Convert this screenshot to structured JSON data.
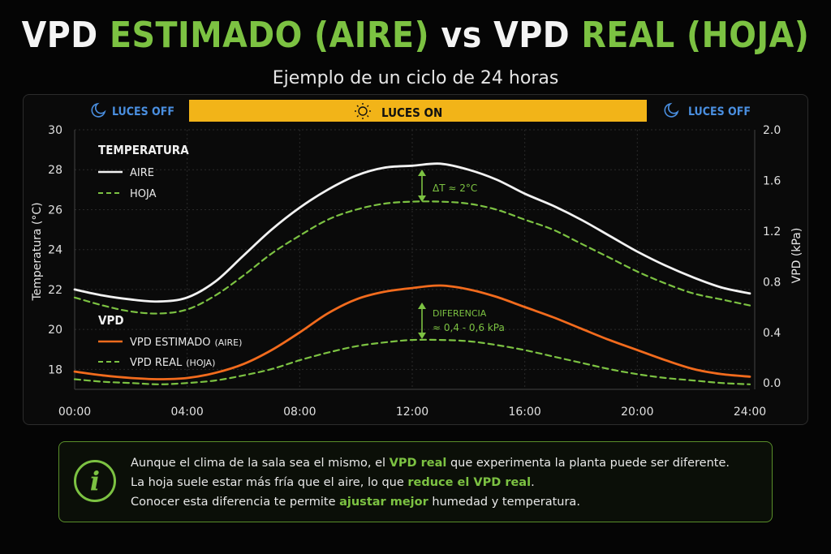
{
  "header": {
    "title_parts": [
      "VPD ",
      "ESTIMADO (AIRE)",
      " vs ",
      "VPD ",
      "REAL (HOJA)"
    ],
    "subtitle": "Ejemplo de un ciclo de 24 horas"
  },
  "light_bar": {
    "off_left": "LUCES OFF",
    "on": "LUCES ON",
    "off_right": "LUCES OFF"
  },
  "chart_data": {
    "type": "line",
    "x_ticks": [
      "00:00",
      "04:00",
      "08:00",
      "12:00",
      "16:00",
      "20:00",
      "24:00"
    ],
    "xlim_hours": [
      0,
      24
    ],
    "ylabel_left": "Temperatura (°C)",
    "ylim_left": [
      17,
      30
    ],
    "yticks_left": [
      "18",
      "20",
      "22",
      "24",
      "26",
      "28",
      "30"
    ],
    "ylabel_right": "VPD (kPa)",
    "ylim_right": [
      -0.05,
      2.0
    ],
    "yticks_right": [
      "0.0",
      "0.4",
      "0.8",
      "1.2",
      "1.6",
      "2.0"
    ],
    "grid": true,
    "legend_temp": {
      "title": "TEMPERATURA",
      "aire": "AIRE",
      "hoja": "HOJA"
    },
    "legend_vpd": {
      "title": "VPD",
      "estimado": "VPD ESTIMADO",
      "estimado_small": "(AIRE)",
      "real": "VPD REAL",
      "real_small": "(HOJA)"
    },
    "series": [
      {
        "name": "AIRE",
        "axis": "left",
        "color": "#f2f2f2",
        "style": "solid",
        "x": [
          0,
          1,
          2,
          3,
          4,
          5,
          6,
          7,
          8,
          9,
          10,
          11,
          12,
          13,
          14,
          15,
          16,
          17,
          18,
          19,
          20,
          21,
          22,
          23,
          24
        ],
        "y": [
          22.0,
          21.7,
          21.5,
          21.4,
          21.6,
          22.4,
          23.7,
          25.0,
          26.1,
          27.0,
          27.7,
          28.1,
          28.2,
          28.3,
          28.0,
          27.5,
          26.8,
          26.2,
          25.5,
          24.7,
          23.9,
          23.2,
          22.6,
          22.1,
          21.8
        ]
      },
      {
        "name": "HOJA",
        "axis": "left",
        "color": "#7cc242",
        "style": "dashed",
        "x": [
          0,
          1,
          2,
          3,
          4,
          5,
          6,
          7,
          8,
          9,
          10,
          11,
          12,
          13,
          14,
          15,
          16,
          17,
          18,
          19,
          20,
          21,
          22,
          23,
          24
        ],
        "y": [
          21.6,
          21.2,
          20.9,
          20.8,
          21.0,
          21.7,
          22.7,
          23.8,
          24.7,
          25.5,
          26.0,
          26.3,
          26.4,
          26.4,
          26.3,
          26.0,
          25.5,
          25.0,
          24.3,
          23.6,
          22.9,
          22.3,
          21.8,
          21.5,
          21.2
        ]
      },
      {
        "name": "VPD ESTIMADO (AIRE)",
        "axis": "right",
        "color": "#f26b1d",
        "style": "solid",
        "x": [
          0,
          1,
          2,
          3,
          4,
          5,
          6,
          7,
          8,
          9,
          10,
          11,
          12,
          13,
          14,
          15,
          16,
          17,
          18,
          19,
          20,
          21,
          22,
          23,
          24
        ],
        "y": [
          0.09,
          0.06,
          0.04,
          0.03,
          0.04,
          0.08,
          0.15,
          0.26,
          0.4,
          0.55,
          0.66,
          0.72,
          0.75,
          0.77,
          0.74,
          0.68,
          0.6,
          0.52,
          0.43,
          0.34,
          0.26,
          0.18,
          0.11,
          0.07,
          0.05
        ]
      },
      {
        "name": "VPD REAL (HOJA)",
        "axis": "right",
        "color": "#7cc242",
        "style": "dashed",
        "x": [
          0,
          1,
          2,
          3,
          4,
          5,
          6,
          7,
          8,
          9,
          10,
          11,
          12,
          13,
          14,
          15,
          16,
          17,
          18,
          19,
          20,
          21,
          22,
          23,
          24
        ],
        "y": [
          0.03,
          0.01,
          0.0,
          -0.01,
          0.0,
          0.02,
          0.06,
          0.11,
          0.18,
          0.24,
          0.29,
          0.32,
          0.34,
          0.34,
          0.33,
          0.3,
          0.26,
          0.21,
          0.16,
          0.11,
          0.07,
          0.04,
          0.02,
          0.0,
          -0.01
        ]
      }
    ],
    "annotations": {
      "delta_t": "ΔT ≈ 2°C",
      "diff_title": "DIFERENCIA",
      "diff_value": "≈ 0,4 - 0,6 kPa"
    }
  },
  "info": {
    "icon": "info-icon",
    "icon_glyph": "i",
    "line1": [
      "Aunque el clima de la sala sea el mismo, el ",
      "VPD real",
      " que experimenta la planta puede ser diferente."
    ],
    "line2": [
      "La hoja suele estar más fría que el aire, lo que ",
      "reduce el VPD real",
      "."
    ],
    "line3": [
      "Conocer esta diferencia te permite ",
      "ajustar mejor",
      " humedad y temperatura."
    ]
  }
}
